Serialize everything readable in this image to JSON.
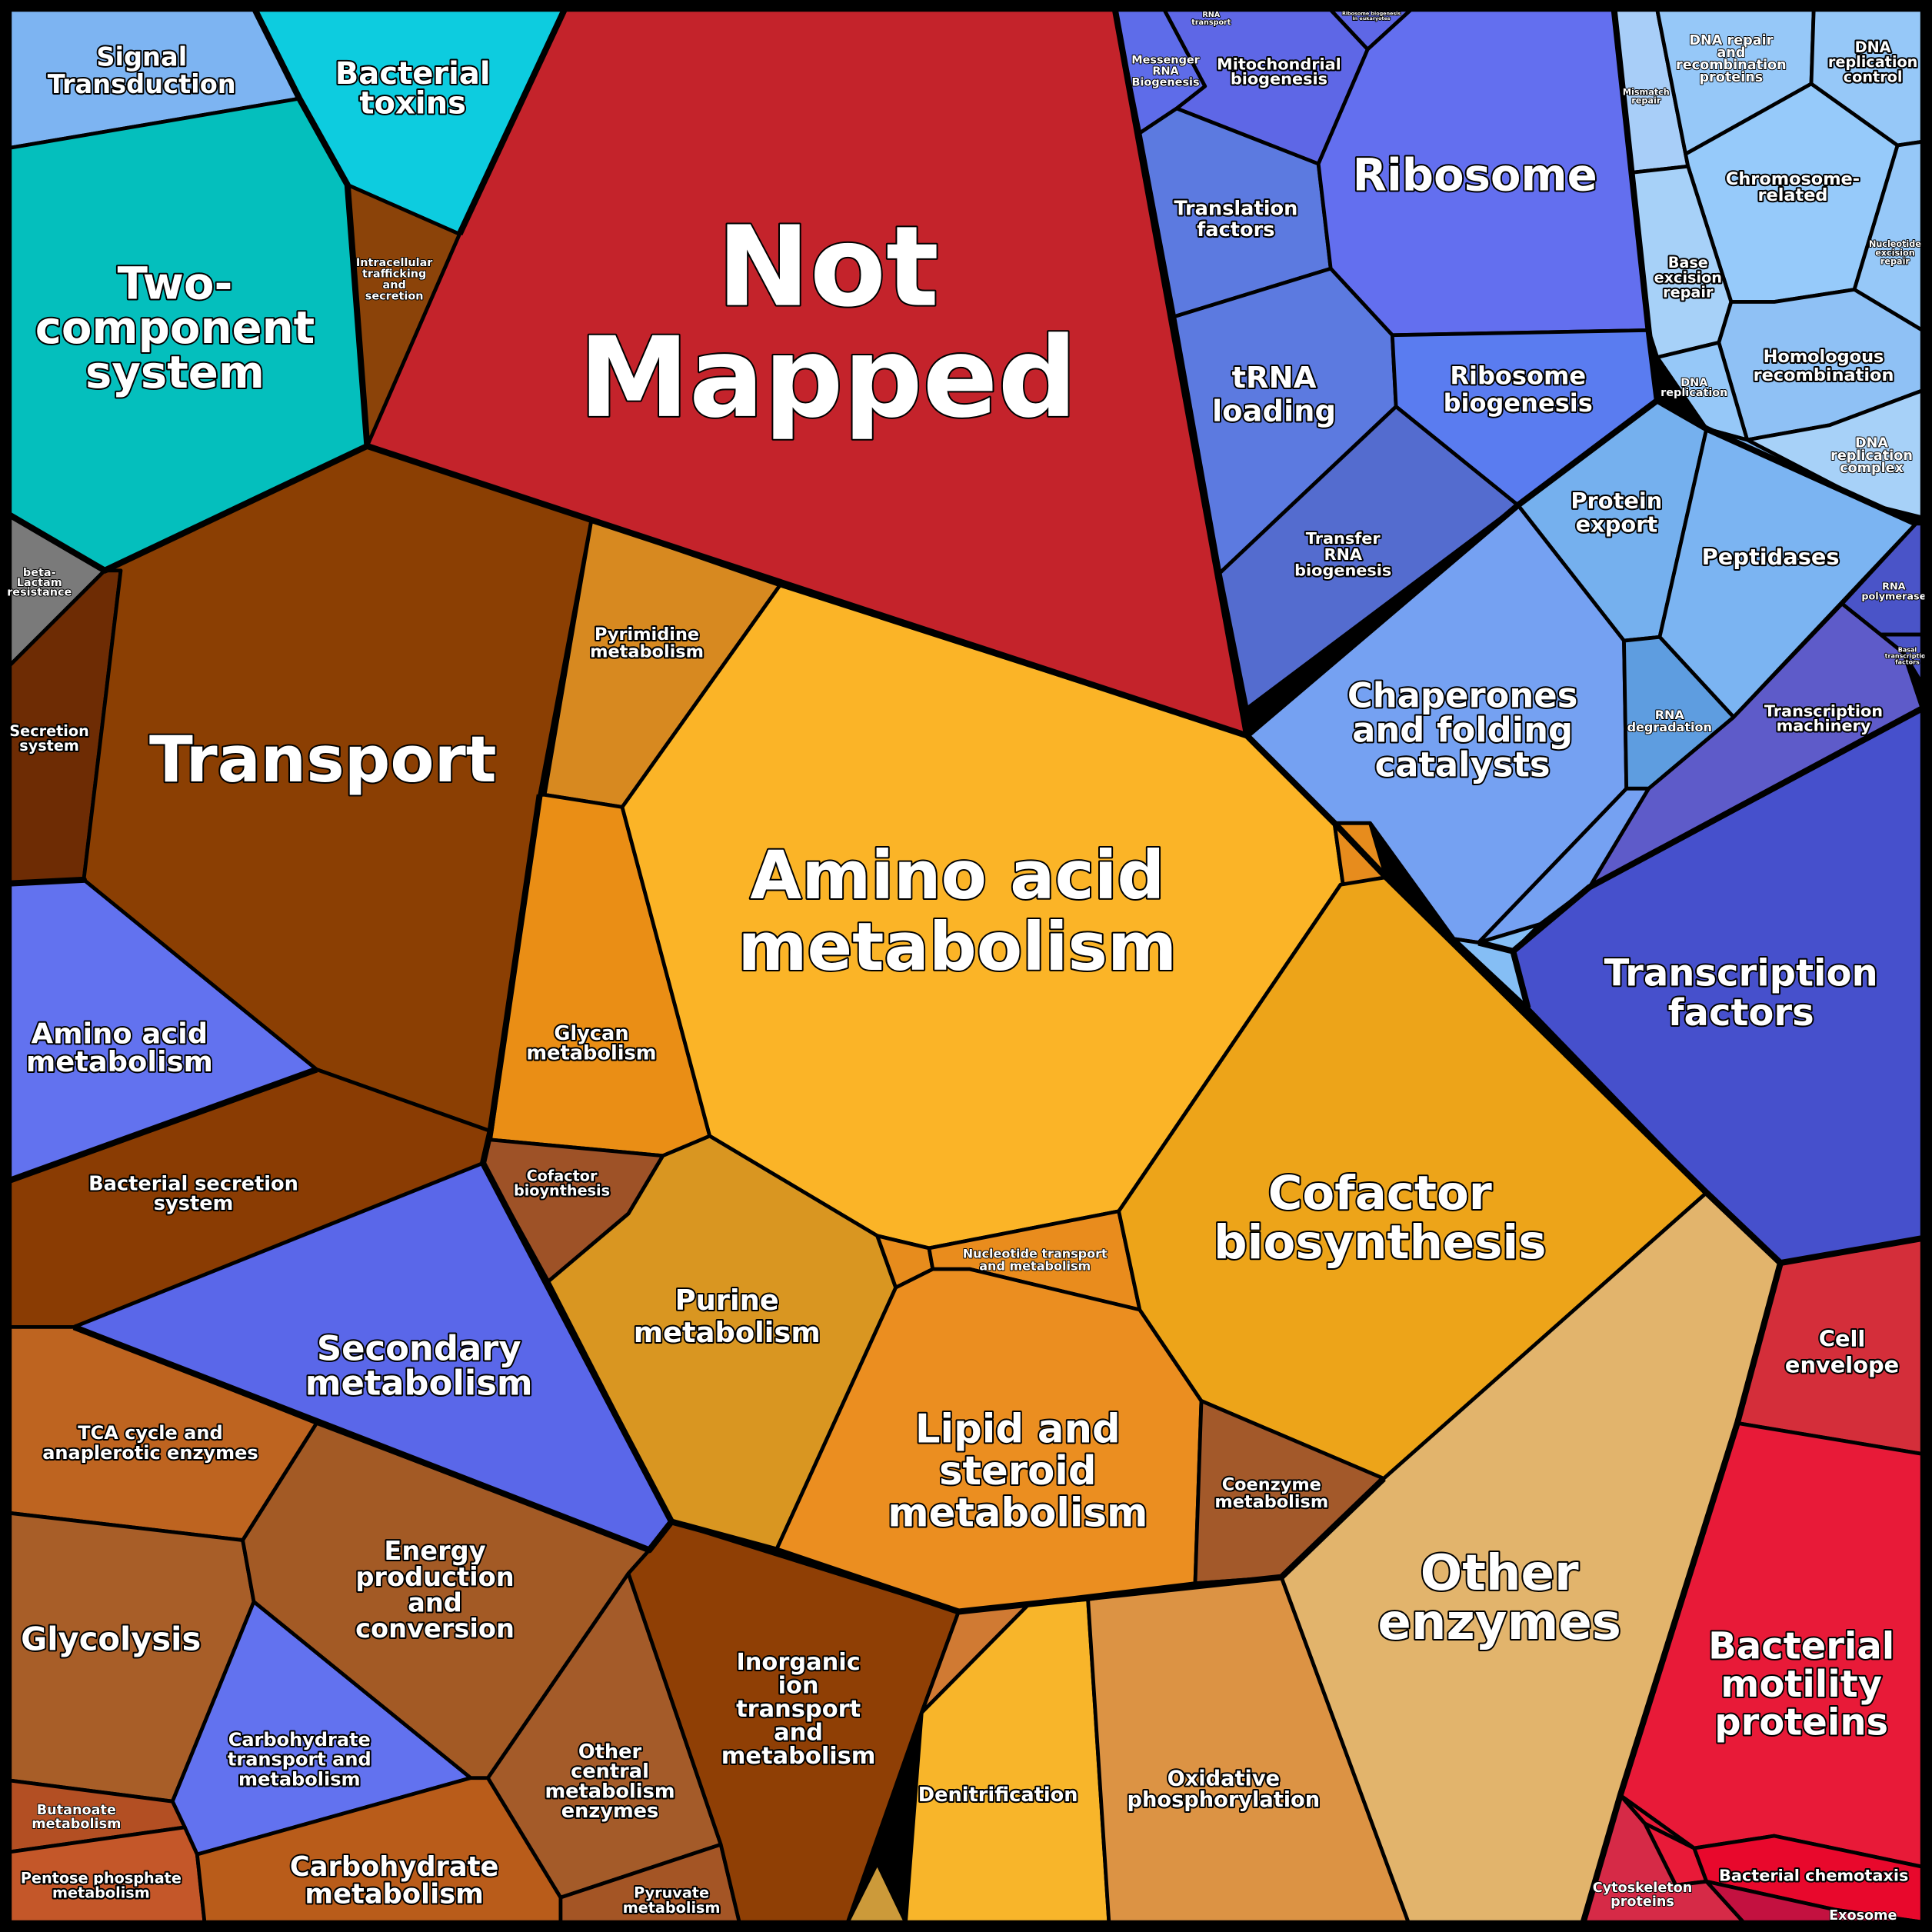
{
  "labels": {
    "not_mapped": [
      "Not",
      "Mapped"
    ],
    "signal_transduction": [
      "Signal",
      "Transduction"
    ],
    "bacterial_toxins": [
      "Bacterial",
      "toxins"
    ],
    "two_component": [
      "Two-",
      "component",
      "system"
    ],
    "intracellular_trafficking": [
      "Intracellular",
      "trafficking",
      "and",
      "secretion"
    ],
    "beta_lactam": [
      "beta-",
      "Lactam",
      "resistance"
    ],
    "secretion_system": [
      "Secretion",
      "system"
    ],
    "transport": [
      "Transport"
    ],
    "amino_acid_small": [
      "Amino acid",
      "metabolism"
    ],
    "bacterial_secretion": [
      "Bacterial secretion",
      "system"
    ],
    "secondary_metabolism": [
      "Secondary",
      "metabolism"
    ],
    "tca_cycle": [
      "TCA cycle and",
      "anaplerotic enzymes"
    ],
    "glycolysis": [
      "Glycolysis"
    ],
    "energy_production": [
      "Energy",
      "production",
      "and",
      "conversion"
    ],
    "carb_transport": [
      "Carbohydrate",
      "transport and",
      "metabolism"
    ],
    "butanoate": [
      "Butanoate",
      "metabolism"
    ],
    "pentose_phosphate": [
      "Pentose phosphate",
      "metabolism"
    ],
    "carb_metabolism": [
      "Carbohydrate",
      "metabolism"
    ],
    "other_central": [
      "Other",
      "central",
      "metabolism",
      "enzymes"
    ],
    "pyruvate": [
      "Pyruvate",
      "metabolism"
    ],
    "inorganic_ion": [
      "Inorganic",
      "ion",
      "transport",
      "and",
      "metabolism"
    ],
    "pyrimidine": [
      "Pyrimidine",
      "metabolism"
    ],
    "amino_acid_big": [
      "Amino acid",
      "metabolism"
    ],
    "glycan": [
      "Glycan",
      "metabolism"
    ],
    "cofactor_bio_small": [
      "Cofactor",
      "bioynthesis"
    ],
    "purine": [
      "Purine",
      "metabolism"
    ],
    "nucleotide_transport": [
      "Nucleotide transport",
      "and metabolism"
    ],
    "lipid": [
      "Lipid and",
      "steroid",
      "metabolism"
    ],
    "cofactor_bio_big": [
      "Cofactor",
      "biosynthesis"
    ],
    "coenzyme": [
      "Coenzyme",
      "metabolism"
    ],
    "denitrification": [
      "Denitrification"
    ],
    "oxidative": [
      "Oxidative",
      "phosphorylation"
    ],
    "other_enzymes": [
      "Other",
      "enzymes"
    ],
    "rna_transport": [
      "RNA",
      "transport"
    ],
    "messenger_rna": [
      "Messenger",
      "RNA",
      "Biogenesis"
    ],
    "mitochondrial": [
      "Mitochondrial",
      "biogenesis"
    ],
    "ribosome_biogenesis_tiny": [
      "Ribosome biogenesis",
      "in eukaryotes"
    ],
    "translation_factors": [
      "Translation",
      "factors"
    ],
    "ribosome": [
      "Ribosome"
    ],
    "trna_loading": [
      "tRNA",
      "loading"
    ],
    "ribosome_biogenesis": [
      "Ribosome",
      "biogenesis"
    ],
    "transfer_rna": [
      "Transfer",
      "RNA",
      "biogenesis"
    ],
    "mismatch_repair": [
      "Mismatch",
      "repair"
    ],
    "dna_repair_recomb": [
      "DNA repair",
      "and",
      "recombination",
      "proteins"
    ],
    "dna_replication_control": [
      "DNA",
      "replication",
      "control"
    ],
    "chromosome": [
      "Chromosome-",
      "related"
    ],
    "nucleotide_excision": [
      "Nucleotide",
      "excision",
      "repair"
    ],
    "base_excision": [
      "Base",
      "excision",
      "repair"
    ],
    "homologous": [
      "Homologous",
      "recombination"
    ],
    "dna_replication": [
      "DNA",
      "replication"
    ],
    "dna_replication_complex": [
      "DNA",
      "replication",
      "complex"
    ],
    "protein_export": [
      "Protein",
      "export"
    ],
    "peptidases": [
      "Peptidases"
    ],
    "rna_polymerase": [
      "RNA",
      "polymerase"
    ],
    "basal_transcription": [
      "Basal",
      "transcription",
      "factors"
    ],
    "transcription_machinery": [
      "Transcription",
      "machinery"
    ],
    "chaperones": [
      "Chaperones",
      "and folding",
      "catalysts"
    ],
    "rna_degradation": [
      "RNA",
      "degradation"
    ],
    "transcription_factors": [
      "Transcription",
      "factors"
    ],
    "cell_envelope": [
      "Cell",
      "envelope"
    ],
    "bacterial_motility": [
      "Bacterial",
      "motility",
      "proteins"
    ],
    "bacterial_chemotaxis": [
      "Bacterial chemotaxis"
    ],
    "cytoskeleton": [
      "Cytoskeleton",
      "proteins"
    ],
    "exosome": [
      "Exosome"
    ]
  },
  "colors": {
    "border": "#000000",
    "not_mapped": "#C4232B",
    "transport_brown": "#8B3F03",
    "amino_acid_orange": "#FBB427",
    "cofactor_orange": "#EDA419",
    "lipid_orange": "#EB8E20",
    "ribosome_blue": "#636FEF",
    "transcription_factors_blue": "#4650CC",
    "chaperones_blue": "#75A1F2",
    "motility_red": "#E81A38",
    "teal": "#04BFBD",
    "cyan": "#0DCCDF",
    "other_enzymes_tan": "#E2B46C"
  }
}
